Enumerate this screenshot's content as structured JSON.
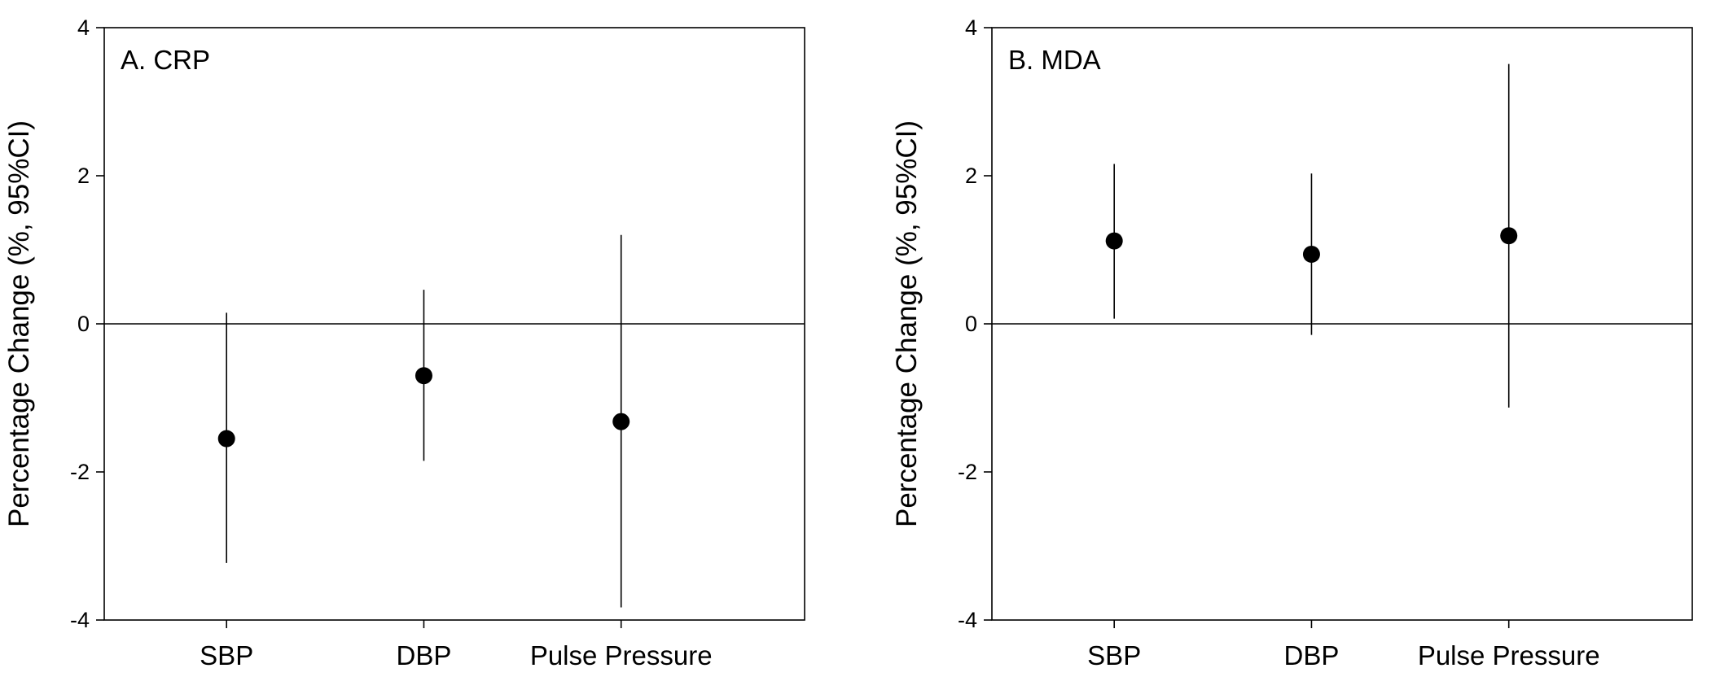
{
  "chart_data": [
    {
      "type": "scatter",
      "subtype": "point-with-error-bars",
      "title": "A. CRP",
      "xlabel": "",
      "ylabel": "Percentage Change (%, 95%CI)",
      "categories": [
        "SBP",
        "DBP",
        "Pulse Pressure"
      ],
      "values": [
        -1.55,
        -0.7,
        -1.32
      ],
      "ci_lower": [
        -3.23,
        -1.85,
        -3.83
      ],
      "ci_upper": [
        0.15,
        0.46,
        1.2
      ],
      "yticks": [
        -4,
        -2,
        0,
        2,
        4
      ],
      "ytick_labels": [
        "-4",
        "-2",
        "0",
        "2",
        "4"
      ],
      "ylim": [
        -4,
        4
      ],
      "reference_line": 0,
      "grid": false
    },
    {
      "type": "scatter",
      "subtype": "point-with-error-bars",
      "title": "B. MDA",
      "xlabel": "",
      "ylabel": "Percentage Change (%, 95%CI)",
      "categories": [
        "SBP",
        "DBP",
        "Pulse Pressure"
      ],
      "values": [
        1.12,
        0.94,
        1.19
      ],
      "ci_lower": [
        0.07,
        -0.15,
        -1.13
      ],
      "ci_upper": [
        2.16,
        2.03,
        3.51
      ],
      "yticks": [
        -4,
        -2,
        0,
        2,
        4
      ],
      "ytick_labels": [
        "-4",
        "-2",
        "0",
        "2",
        "4"
      ],
      "ylim": [
        -4,
        4
      ],
      "reference_line": 0,
      "grid": false
    }
  ],
  "colors": {
    "marker": "#000000",
    "line": "#000000",
    "background": "#ffffff"
  }
}
